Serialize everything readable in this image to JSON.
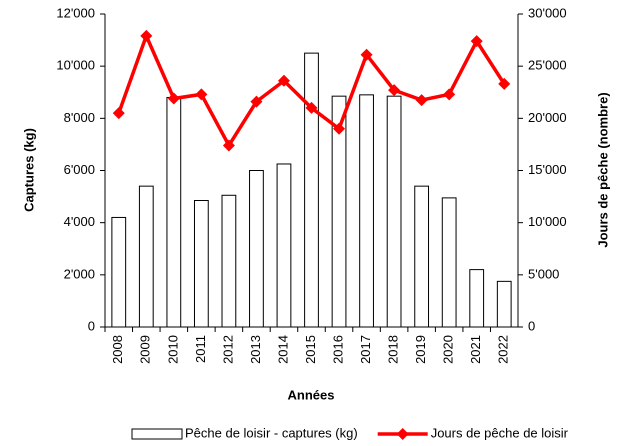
{
  "chart_data": {
    "type": "bar_line",
    "x_label": "Années",
    "y_label": "Captures (kg)",
    "y2_label": "Jours de pêche (nombre)",
    "categories": [
      "2008",
      "2009",
      "2010",
      "2011",
      "2012",
      "2013",
      "2014",
      "2015",
      "2016",
      "2017",
      "2018",
      "2019",
      "2020",
      "2021",
      "2022"
    ],
    "series": [
      {
        "name": "Pêche de loisir - captures (kg)",
        "type": "bar",
        "color": "#ffffff",
        "values": [
          4200,
          5400,
          8800,
          4850,
          5050,
          6000,
          6250,
          10500,
          8850,
          8900,
          8850,
          5400,
          4950,
          2200,
          1750
        ]
      },
      {
        "name": "Jours de pêche de loisir",
        "type": "line",
        "axis": "y2",
        "color": "#ff0000",
        "values": [
          20500,
          27900,
          21900,
          22300,
          17400,
          21600,
          23600,
          21000,
          19000,
          26100,
          22700,
          21750,
          22300,
          27400,
          23300
        ]
      }
    ],
    "ylim": [
      0,
      12000
    ],
    "yticks": [
      0,
      {
        "value": 2000,
        "label": "2'000"
      },
      {
        "value": 4000,
        "label": "4'000"
      },
      {
        "value": 6000,
        "label": "6'000"
      },
      {
        "value": 8000,
        "label": "8'000"
      },
      {
        "value": 10000,
        "label": "10'000"
      },
      {
        "value": 12000,
        "label": "12'000"
      }
    ],
    "y2lim": [
      0,
      30000
    ],
    "y2ticks": [
      0,
      {
        "value": 5000,
        "label": "5'000"
      },
      {
        "value": 10000,
        "label": "10'000"
      },
      {
        "value": 15000,
        "label": "15'000"
      },
      {
        "value": 20000,
        "label": "20'000"
      },
      {
        "value": 25000,
        "label": "25'000"
      },
      {
        "value": 30000,
        "label": "30'000"
      }
    ],
    "legend": "bottom"
  }
}
